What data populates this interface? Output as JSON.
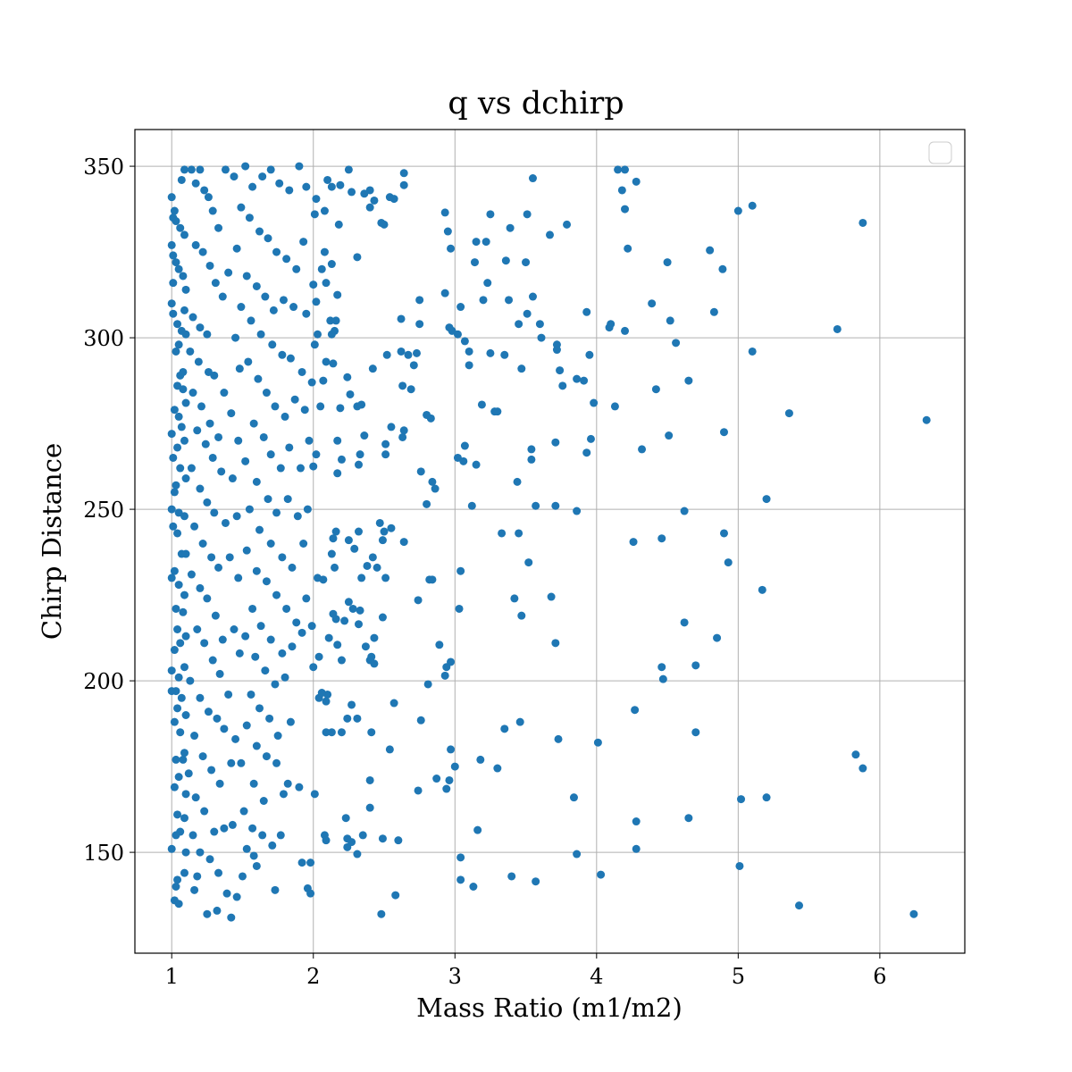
{
  "chart_data": {
    "type": "scatter",
    "title": "q vs dchirp",
    "xlabel": "Mass Ratio (m1/m2)",
    "ylabel": "Chirp Distance",
    "color": "#1f77b4",
    "grid": true,
    "legend": "upper right",
    "xlim": [
      0.74,
      6.6
    ],
    "ylim": [
      120.6,
      360.7
    ],
    "xticks": [
      1,
      2,
      3,
      4,
      5,
      6
    ],
    "yticks": [
      150,
      200,
      250,
      300,
      350
    ],
    "x": [
      3.55,
      3.51,
      3.39,
      3.25,
      3.15,
      3.22,
      3.79,
      3.67,
      3.36,
      3.5,
      3.14,
      3.23,
      3.2,
      3.38,
      3.55,
      3.51,
      3.45,
      3.6,
      3.61,
      3.72,
      3.72,
      3.93,
      3.95,
      3.74,
      3.76,
      3.86,
      3.91,
      3.47,
      3.1,
      3.1,
      3.25,
      3.35,
      3.07,
      3.02,
      3.04,
      2.96,
      2.98,
      2.93,
      2.95,
      2.97,
      2.93,
      4.09,
      4.1,
      4.2,
      4.22,
      4.15,
      4.2,
      4.28,
      4.18,
      4.2,
      4.39,
      4.5,
      4.52,
      4.56,
      4.42,
      4.65,
      4.8,
      4.89,
      4.83,
      5.0,
      5.1,
      5.1,
      5.88,
      5.7,
      6.33,
      5.36,
      4.9,
      4.51,
      4.32,
      4.13,
      3.98,
      3.96,
      3.93,
      3.71,
      3.54,
      3.54,
      3.44,
      3.57,
      3.71,
      3.86,
      3.19,
      3.28,
      3.3,
      3.15,
      3.07,
      3.02,
      3.06,
      3.12,
      4.62,
      5.2,
      4.9,
      4.93,
      4.46,
      4.26,
      3.45,
      3.33,
      3.52,
      3.04,
      3.42,
      3.68,
      3.47,
      3.03,
      5.17,
      4.62,
      4.85,
      3.71,
      4.46,
      4.47,
      4.7,
      2.97,
      2.94,
      2.93,
      2.89,
      4.27,
      3.46,
      3.35,
      3.73,
      4.01,
      4.7,
      5.83,
      5.88,
      2.97,
      3.18,
      3.0,
      3.3,
      2.96,
      2.87,
      2.94,
      2.74,
      3.84,
      5.02,
      5.2,
      4.28,
      4.65,
      3.16,
      4.28,
      3.86,
      3.04,
      5.01,
      4.03,
      3.4,
      3.57,
      3.04,
      3.13,
      5.43,
      6.24,
      2.48,
      2.58,
      2.02,
      2.01,
      2.1,
      2.13,
      2.19,
      2.25,
      2.27,
      2.4,
      2.43,
      2.48,
      2.5,
      2.54,
      2.57,
      2.64,
      2.64,
      2.36,
      2.4,
      2.18,
      2.08,
      2.31,
      2.08,
      2.06,
      2.13,
      2.09,
      2.0,
      2.02,
      2.17,
      2.12,
      2.16,
      2.15,
      2.13,
      2.09,
      2.14,
      2.01,
      2.03,
      2.62,
      2.75,
      2.75,
      2.62,
      2.52,
      2.67,
      2.71,
      2.73,
      2.42,
      2.24,
      2.26,
      2.31,
      2.34,
      2.19,
      2.05,
      2.07,
      2.63,
      2.69,
      2.64,
      2.63,
      2.55,
      2.51,
      2.51,
      2.36,
      2.33,
      2.32,
      2.17,
      2.2,
      2.0,
      2.02,
      2.17,
      2.76,
      2.84,
      2.86,
      2.8,
      2.83,
      2.8,
      2.47,
      2.55,
      2.5,
      2.49,
      2.64,
      2.32,
      2.25,
      2.16,
      2.14,
      2.13,
      2.15,
      2.29,
      2.42,
      2.38,
      2.45,
      2.51,
      2.34,
      2.82,
      2.84,
      2.74,
      2.03,
      2.07,
      2.25,
      2.14,
      2.16,
      2.22,
      2.28,
      2.33,
      2.32,
      2.43,
      2.49,
      2.11,
      2.17,
      2.04,
      2.2,
      2.37,
      2.4,
      2.41,
      2.43,
      2.0,
      2.27,
      2.04,
      2.1,
      2.09,
      2.06,
      2.57,
      2.76,
      2.81,
      2.2,
      2.24,
      2.31,
      2.41,
      2.13,
      2.09,
      2.54,
      2.4,
      2.4,
      2.01,
      2.23,
      2.08,
      2.09,
      2.24,
      2.27,
      2.35,
      2.31,
      2.49,
      2.6,
      1.98,
      2.24,
      1.96,
      1.98,
      1.0,
      1.02,
      1.01,
      1.03,
      1.0,
      1.01,
      1.03,
      1.05,
      1.01,
      1.0,
      1.01,
      1.04,
      1.07,
      1.05,
      1.03,
      1.06,
      1.04,
      1.08,
      1.02,
      1.05,
      1.07,
      1.0,
      1.04,
      1.01,
      1.06,
      1.03,
      1.02,
      1.0,
      1.05,
      1.01,
      1.04,
      1.07,
      1.02,
      1.0,
      1.05,
      1.03,
      1.08,
      1.04,
      1.06,
      1.02,
      1.0,
      1.05,
      1.03,
      1.0,
      1.07,
      1.04,
      1.02,
      1.06,
      1.03,
      1.08,
      1.05,
      1.02,
      1.04,
      1.06,
      1.03,
      1.0,
      1.04,
      1.03,
      1.02,
      1.05,
      1.07,
      1.09,
      1.06,
      1.09,
      1.08,
      1.1,
      1.09,
      1.1,
      1.08,
      1.1,
      1.09,
      1.1,
      1.09,
      1.1,
      1.09,
      1.1,
      1.09,
      1.1,
      1.09,
      1.1,
      1.09,
      1.1,
      1.09,
      1.14,
      1.17,
      1.2,
      1.23,
      1.26,
      1.29,
      1.33,
      1.17,
      1.22,
      1.27,
      1.31,
      1.36,
      1.15,
      1.2,
      1.25,
      1.13,
      1.19,
      1.26,
      1.3,
      1.37,
      1.15,
      1.21,
      1.27,
      1.33,
      1.42,
      1.18,
      1.24,
      1.29,
      1.35,
      1.43,
      1.14,
      1.2,
      1.25,
      1.3,
      1.38,
      1.46,
      1.16,
      1.22,
      1.28,
      1.33,
      1.41,
      1.47,
      1.14,
      1.2,
      1.25,
      1.31,
      1.36,
      1.44,
      1.18,
      1.23,
      1.29,
      1.34,
      1.4,
      1.48,
      1.13,
      1.2,
      1.26,
      1.32,
      1.37,
      1.45,
      1.16,
      1.22,
      1.28,
      1.34,
      1.42,
      1.49,
      1.12,
      1.17,
      1.23,
      1.3,
      1.37,
      1.43,
      1.15,
      1.2,
      1.27,
      1.33,
      1.39,
      1.46,
      1.16,
      1.25,
      1.32,
      1.42,
      1.18,
      1.49,
      1.44,
      1.38,
      1.46,
      1.4,
      1.49,
      1.45,
      1.48,
      1.47,
      1.52,
      1.57,
      1.64,
      1.7,
      1.76,
      1.83,
      1.9,
      1.95,
      1.55,
      1.62,
      1.68,
      1.74,
      1.81,
      1.88,
      1.93,
      1.53,
      1.6,
      1.66,
      1.72,
      1.79,
      1.86,
      1.95,
      1.56,
      1.63,
      1.71,
      1.78,
      1.84,
      1.92,
      1.99,
      1.54,
      1.61,
      1.67,
      1.73,
      1.8,
      1.87,
      1.94,
      1.58,
      1.65,
      1.7,
      1.77,
      1.83,
      1.91,
      1.97,
      1.52,
      1.6,
      1.68,
      1.74,
      1.82,
      1.89,
      1.96,
      1.55,
      1.62,
      1.7,
      1.78,
      1.85,
      1.93,
      1.53,
      1.6,
      1.67,
      1.74,
      1.81,
      1.88,
      1.95,
      1.57,
      1.63,
      1.7,
      1.78,
      1.85,
      1.92,
      1.52,
      1.59,
      1.66,
      1.73,
      1.8,
      1.99,
      1.56,
      1.62,
      1.69,
      1.75,
      1.84,
      1.53,
      1.6,
      1.67,
      1.74,
      1.82,
      1.9,
      1.58,
      1.65,
      1.79,
      1.51,
      1.57,
      1.64,
      1.71,
      1.77,
      1.53,
      1.6,
      1.73,
      1.92,
      1.58,
      1.5
    ],
    "values": [
      346.5,
      336,
      332,
      336,
      328,
      328,
      333,
      330,
      322.5,
      322,
      322,
      316,
      311,
      311,
      312,
      307,
      304,
      304,
      300,
      298,
      296.5,
      307.5,
      295,
      290.5,
      286,
      288,
      287.5,
      291,
      292,
      296,
      295.5,
      295,
      299,
      301,
      309,
      303,
      302,
      313,
      331,
      326,
      336.5,
      303,
      304,
      302,
      326,
      349,
      349,
      345.5,
      343,
      337.5,
      310,
      322,
      305,
      298.5,
      285,
      287.5,
      325.5,
      320,
      307.5,
      337,
      338.5,
      296,
      333.5,
      302.5,
      276,
      278,
      272.5,
      271.5,
      267.5,
      280,
      281,
      270.5,
      266.5,
      269.5,
      267.5,
      264.5,
      258,
      251,
      251,
      249.5,
      280.5,
      278.5,
      278.5,
      263,
      268.5,
      265,
      264,
      251,
      249.5,
      253,
      243,
      234.5,
      241.5,
      240.5,
      243,
      243,
      234.5,
      232,
      224,
      224.5,
      219,
      221,
      226.5,
      217,
      212.5,
      211,
      204,
      200.5,
      204.5,
      205.5,
      204,
      201.5,
      210.5,
      191.5,
      188,
      186,
      183,
      182,
      185,
      178.5,
      174.5,
      180,
      177,
      175,
      174.5,
      171,
      171.5,
      168.5,
      168,
      166,
      165.5,
      166,
      159,
      160,
      156.5,
      151,
      149.5,
      148.5,
      146,
      143.5,
      143,
      141.5,
      142,
      140,
      134.5,
      132,
      132,
      137.5,
      340.5,
      336,
      346,
      344,
      344.5,
      349,
      342.5,
      343,
      340,
      333.5,
      333,
      341,
      340.5,
      348,
      344.5,
      342,
      338,
      333,
      337,
      323.5,
      325,
      320,
      321.5,
      316,
      315.5,
      310.5,
      312.5,
      305,
      305,
      302,
      301,
      293,
      292.5,
      298,
      301,
      305.5,
      304,
      311,
      296,
      295,
      295,
      292,
      295.5,
      291,
      288.5,
      283.5,
      280,
      280.5,
      279.5,
      280,
      287.5,
      286,
      285,
      273,
      271,
      274,
      269,
      266,
      271.5,
      266,
      263,
      270,
      264.5,
      262.5,
      266,
      260.5,
      261,
      258,
      256,
      277.5,
      276.5,
      251.5,
      246,
      244.5,
      243.5,
      241,
      240.5,
      243.5,
      241,
      243.5,
      241.5,
      237,
      233,
      238.5,
      236,
      233.5,
      233,
      230,
      230,
      229.5,
      229.5,
      223.5,
      230,
      229.5,
      223,
      219.5,
      218,
      217.5,
      221,
      220.5,
      216.5,
      212.5,
      218.5,
      212.5,
      210.5,
      207,
      206,
      210,
      206,
      207,
      205,
      204,
      193,
      195,
      196,
      194,
      196.5,
      193.5,
      188.5,
      199,
      185,
      189,
      189,
      185,
      185,
      185,
      180,
      171,
      163,
      167,
      160,
      155,
      153.5,
      151.5,
      153,
      155,
      149.5,
      154,
      153.5,
      147,
      154,
      139.5,
      138,
      341,
      337,
      335,
      334,
      327,
      324,
      322,
      320,
      316,
      310,
      307,
      304,
      302,
      298,
      296,
      289,
      286,
      285,
      279,
      277,
      274,
      272,
      268,
      265,
      262,
      257,
      255,
      250,
      249,
      245,
      243,
      237,
      232,
      230,
      228,
      221,
      220,
      215,
      211,
      209,
      203,
      201,
      197,
      197,
      195,
      192,
      188,
      185,
      177,
      177,
      172,
      169,
      161,
      156,
      155,
      151,
      142,
      140,
      136,
      135,
      346,
      349,
      332,
      330,
      318,
      314,
      308,
      301,
      290,
      281,
      270,
      259,
      248,
      237,
      225,
      213,
      204,
      190,
      179,
      167,
      160,
      150,
      144,
      349,
      345,
      349,
      343,
      341,
      337,
      332,
      327,
      325,
      321,
      316,
      312,
      306,
      303,
      301,
      296,
      293,
      290,
      289,
      284,
      284,
      280,
      275,
      271,
      278,
      273,
      269,
      265,
      261,
      259,
      262,
      256,
      252,
      249,
      246,
      248,
      245,
      240,
      236,
      233,
      236,
      230,
      231,
      227,
      224,
      219,
      212,
      215,
      215,
      211,
      206,
      202,
      196,
      208,
      200,
      195,
      191,
      189,
      186,
      183,
      184,
      178,
      174,
      170,
      176,
      176,
      173,
      166,
      162,
      156,
      157,
      158,
      155,
      150,
      148,
      144,
      138,
      137,
      139,
      132,
      133,
      131,
      143,
      338,
      347,
      349,
      326,
      319,
      309,
      300,
      291,
      270,
      350,
      344,
      347,
      349,
      345,
      343,
      350,
      344,
      335,
      331,
      329,
      325,
      323,
      320,
      328,
      318,
      315,
      312,
      308,
      311,
      309,
      307,
      305,
      301,
      298,
      295,
      294,
      290,
      287,
      293,
      288,
      284,
      280,
      277,
      282,
      279,
      275,
      271,
      266,
      262,
      268,
      262,
      270,
      264,
      258,
      253,
      249,
      253,
      248,
      250,
      250,
      244,
      240,
      236,
      233,
      240,
      238,
      232,
      229,
      225,
      221,
      217,
      224,
      221,
      216,
      212,
      208,
      210,
      214,
      213,
      207,
      203,
      199,
      201,
      216,
      196,
      192,
      189,
      184,
      188,
      187,
      181,
      178,
      176,
      170,
      169,
      170,
      165,
      167,
      162,
      157,
      155,
      152,
      155,
      151,
      146,
      139,
      147,
      149,
      143
    ]
  }
}
